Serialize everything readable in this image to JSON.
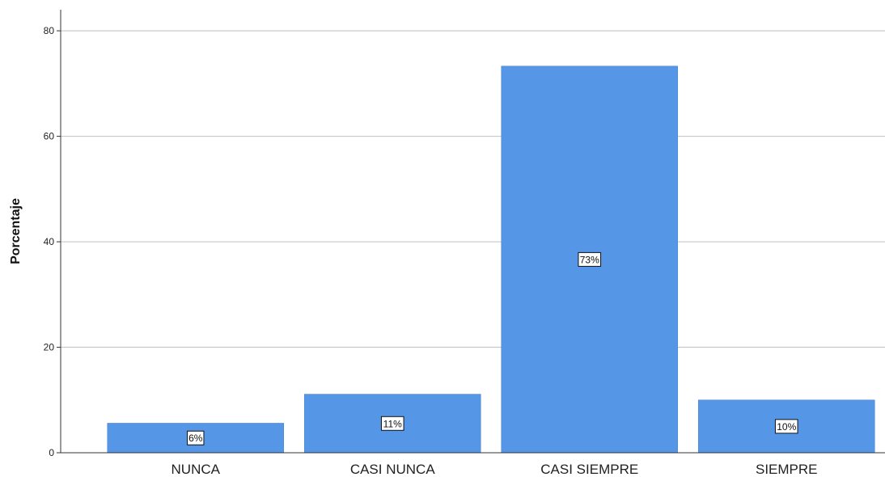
{
  "chart_data": {
    "type": "bar",
    "categories": [
      "NUNCA",
      "CASI NUNCA",
      "CASI SIEMPRE",
      "SIEMPRE"
    ],
    "values": [
      5.6,
      11.1,
      73.3,
      10.0
    ],
    "data_labels": [
      "6%",
      "11%",
      "73%",
      "10%"
    ],
    "ylabel": "Porcentaje",
    "xlabel": "",
    "ylim": [
      0,
      84
    ],
    "yticks": [
      0,
      20,
      40,
      60,
      80
    ],
    "grid": true,
    "colors": {
      "bar": "#5596e6",
      "grid": "#c8c8c8",
      "axis": "#333333"
    }
  }
}
